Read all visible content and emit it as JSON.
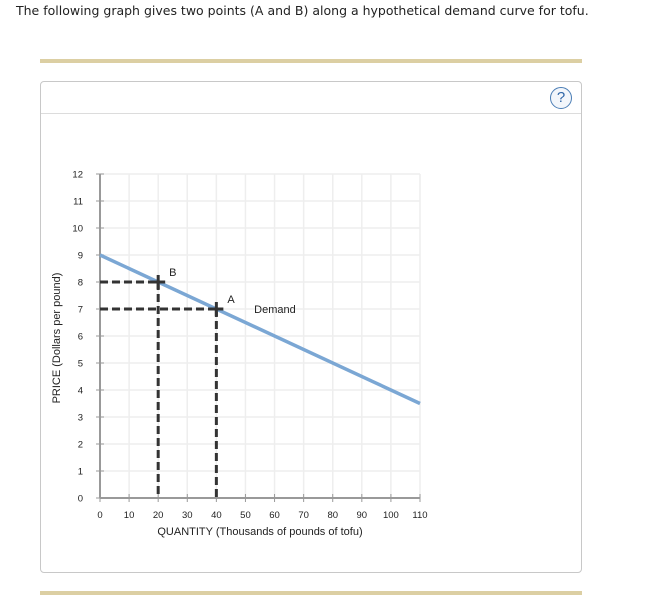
{
  "intro_text": "The following graph gives two points (A and B) along a hypothetical demand curve for tofu.",
  "help_button": {
    "label": "?",
    "icon": "question-circle-icon"
  },
  "colors": {
    "rule": "#dccfa3",
    "demand_line": "#7ba7d4",
    "guides": "#333333",
    "grid": "#eeeeee",
    "axis": "#999999",
    "help": "#2f66a8"
  },
  "chart_data": {
    "type": "line",
    "title": "",
    "xlabel": "QUANTITY (Thousands of pounds of tofu)",
    "ylabel": "PRICE (Dollars per pound)",
    "xlim": [
      0,
      110
    ],
    "ylim": [
      0,
      12
    ],
    "x_ticks": [
      0,
      10,
      20,
      30,
      40,
      50,
      60,
      70,
      80,
      90,
      100,
      110
    ],
    "y_ticks": [
      0,
      1,
      2,
      3,
      4,
      5,
      6,
      7,
      8,
      9,
      10,
      11,
      12
    ],
    "grid": true,
    "series": [
      {
        "name": "Demand",
        "x": [
          0,
          110
        ],
        "y": [
          9,
          3.5
        ],
        "label": "Demand",
        "label_at": [
          53,
          7
        ]
      }
    ],
    "points": [
      {
        "name": "B",
        "x": 20,
        "y": 8
      },
      {
        "name": "A",
        "x": 40,
        "y": 7
      }
    ],
    "annotations": [
      "A",
      "B",
      "Demand"
    ]
  }
}
